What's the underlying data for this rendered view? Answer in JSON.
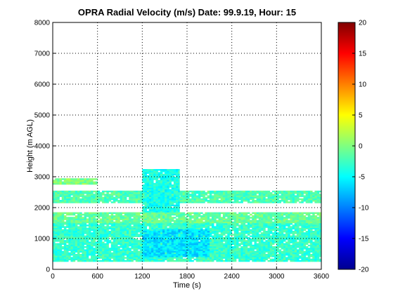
{
  "chart_data": {
    "type": "heatmap",
    "title": "OPRA Radial Velocity (m/s)  Date: 99.9.19, Hour: 15",
    "xlabel": "Time (s)",
    "ylabel": "Height (m AGL)",
    "xlim": [
      0,
      3600
    ],
    "ylim": [
      0,
      8000
    ],
    "x_ticks": [
      "0",
      "600",
      "1200",
      "1800",
      "2400",
      "3000",
      "3600"
    ],
    "y_ticks": [
      "0",
      "1000",
      "2000",
      "3000",
      "4000",
      "5000",
      "6000",
      "7000",
      "8000"
    ],
    "grid": true,
    "colorbar": {
      "range": [
        -20,
        20
      ],
      "ticks": [
        "-20",
        "-15",
        "-10",
        "-5",
        "0",
        "5",
        "10",
        "15",
        "20"
      ],
      "colormap": "jet"
    },
    "data_regions": [
      {
        "x": [
          0,
          3600
        ],
        "y": [
          250,
          1500
        ],
        "velocity": -3
      },
      {
        "x": [
          0,
          3600
        ],
        "y": [
          1500,
          1850
        ],
        "velocity": -1
      },
      {
        "x": [
          0,
          3600
        ],
        "y": [
          2150,
          2550
        ],
        "velocity": -2
      },
      {
        "x": [
          0,
          600
        ],
        "y": [
          2750,
          2950
        ],
        "velocity": 0
      },
      {
        "x": [
          1200,
          1700
        ],
        "y": [
          1850,
          3250
        ],
        "velocity": -4
      },
      {
        "x": [
          1200,
          2100
        ],
        "y": [
          400,
          1300
        ],
        "velocity": -6
      }
    ]
  }
}
